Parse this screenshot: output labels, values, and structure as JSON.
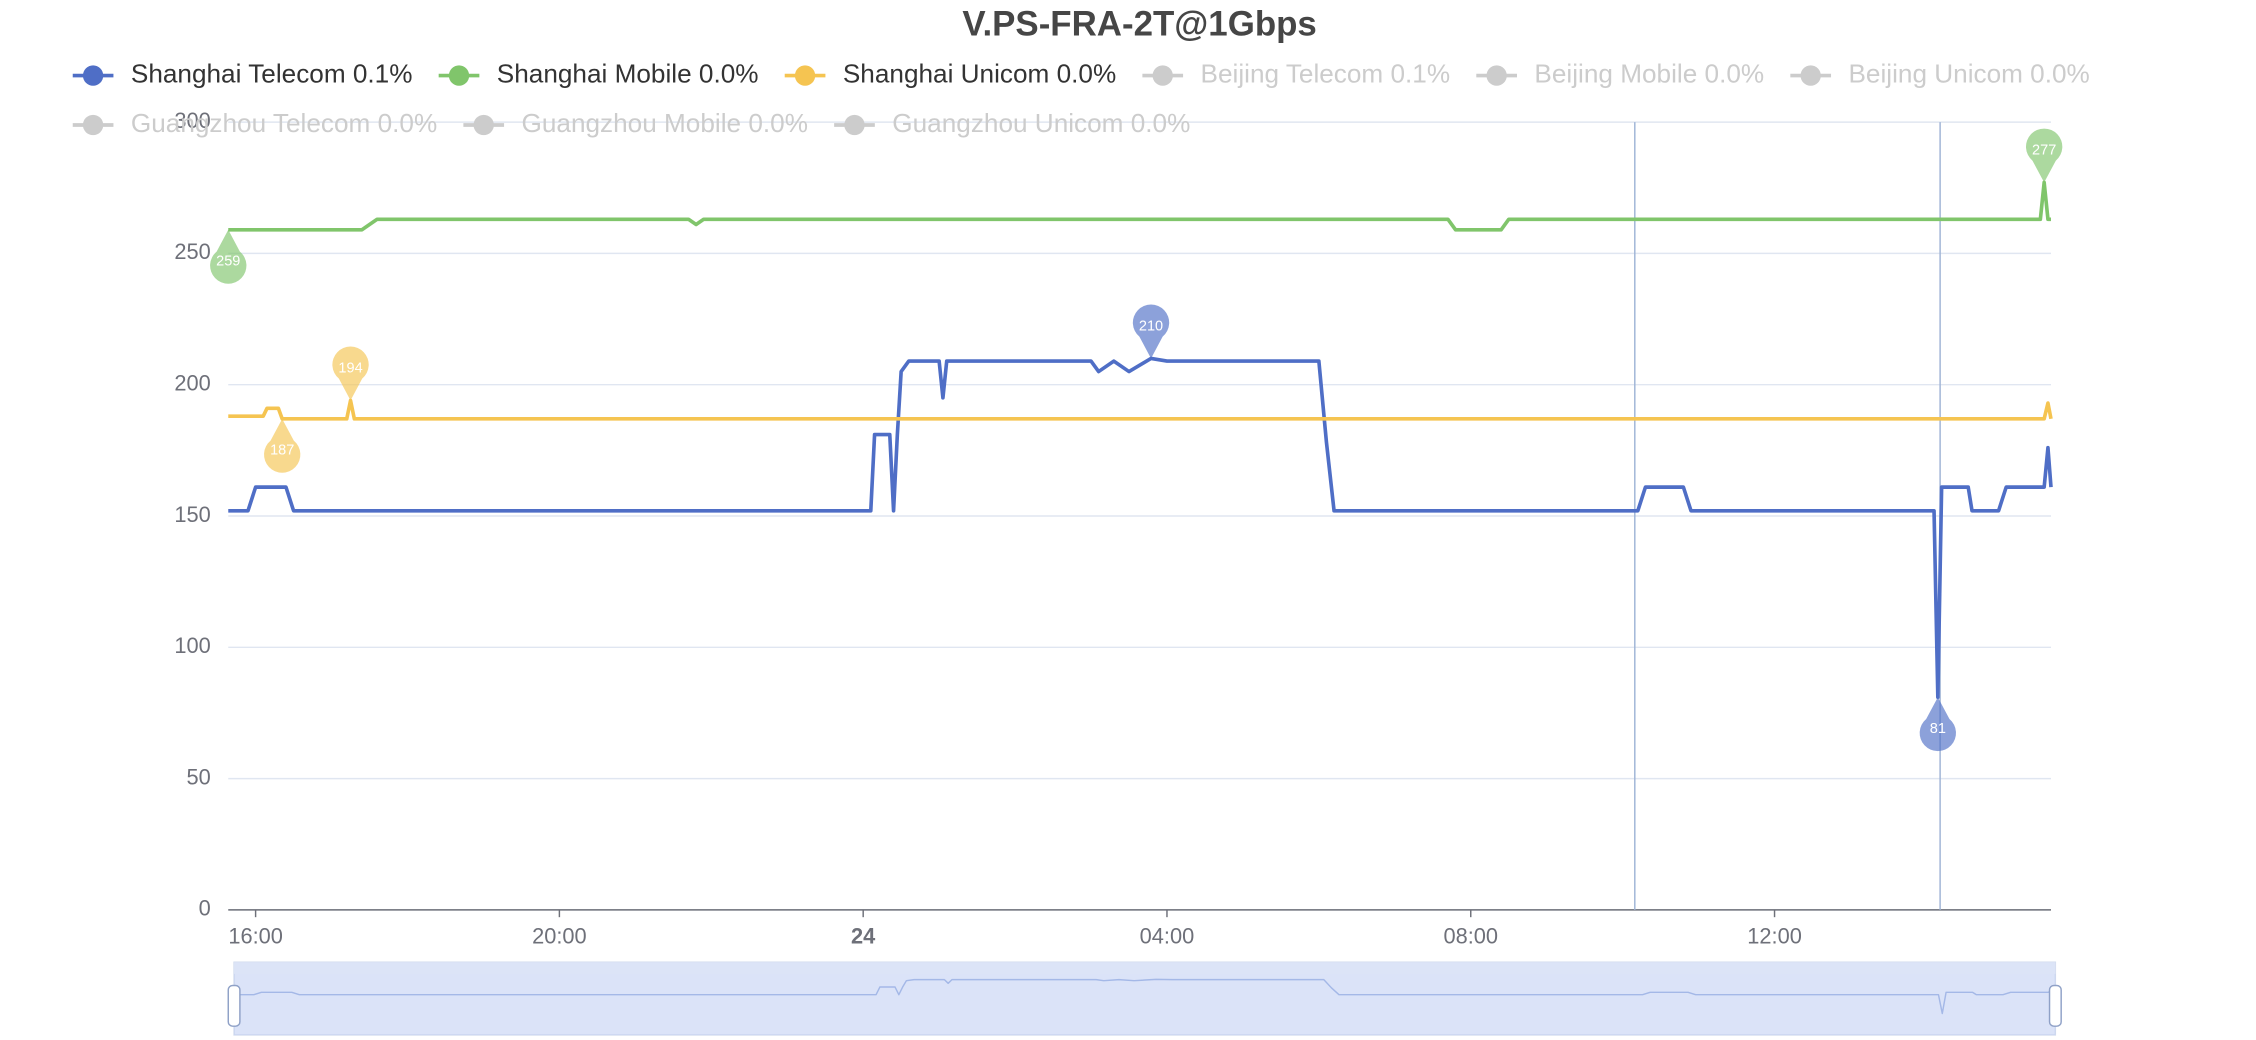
{
  "chart_data": {
    "type": "line",
    "title": "V.PS-FRA-2T@1Gbps",
    "x": [
      15.64,
      15.9,
      16.0,
      16.1,
      16.15,
      16.3,
      16.35,
      16.4,
      16.5,
      17.2,
      17.25,
      17.3,
      17.4,
      17.5,
      17.6,
      21.7,
      21.8,
      21.9,
      24.1,
      24.15,
      24.35,
      24.4,
      24.45,
      24.5,
      24.6,
      25.0,
      25.05,
      25.1,
      27.0,
      27.1,
      27.3,
      27.5,
      27.79,
      28.0,
      30.0,
      30.1,
      30.2,
      31.7,
      31.8,
      32.4,
      32.5,
      34.2,
      34.3,
      34.8,
      34.9,
      38.1,
      38.15,
      38.2,
      38.55,
      38.6,
      38.95,
      39.05,
      39.5,
      39.55,
      39.6,
      39.64
    ],
    "xlim": [
      15.64,
      39.64
    ],
    "xticks": [
      {
        "value": 16,
        "label": "16:00"
      },
      {
        "value": 20,
        "label": "20:00"
      },
      {
        "value": 24,
        "label": "24"
      },
      {
        "value": 28,
        "label": "04:00"
      },
      {
        "value": 32,
        "label": "08:00"
      },
      {
        "value": 36,
        "label": "12:00"
      }
    ],
    "ylim": [
      0,
      300
    ],
    "yticks": [
      0,
      50,
      100,
      150,
      200,
      250,
      300
    ],
    "grid": true,
    "series": [
      {
        "name": "Shanghai Telecom 0.1%",
        "color": "#4f6ec6",
        "visible": true,
        "values": [
          152,
          152,
          161,
          161,
          161,
          161,
          161,
          161,
          152,
          152,
          152,
          152,
          152,
          152,
          152,
          152,
          152,
          152,
          152,
          181,
          181,
          152,
          181,
          205,
          209,
          209,
          195,
          209,
          209,
          205,
          209,
          205,
          210,
          209,
          209,
          178,
          152,
          152,
          152,
          152,
          152,
          152,
          161,
          161,
          152,
          152,
          81,
          161,
          161,
          152,
          152,
          161,
          161,
          161,
          176,
          161
        ],
        "mark_points": [
          {
            "x": 27.79,
            "value": 210
          },
          {
            "x": 38.15,
            "value": 81
          }
        ]
      },
      {
        "name": "Shanghai Mobile 0.0%",
        "color": "#80c56b",
        "visible": true,
        "values": [
          259,
          259,
          259,
          259,
          259,
          259,
          259,
          259,
          259,
          259,
          259,
          259,
          259,
          261,
          263,
          263,
          261,
          263,
          263,
          263,
          263,
          263,
          263,
          263,
          263,
          263,
          263,
          263,
          263,
          263,
          263,
          263,
          263,
          263,
          263,
          263,
          263,
          263,
          259,
          259,
          263,
          263,
          263,
          263,
          263,
          263,
          263,
          263,
          263,
          263,
          263,
          263,
          263,
          277,
          263,
          263
        ],
        "mark_points": [
          {
            "x": 39.55,
            "value": 277
          },
          {
            "x": 15.64,
            "value": 259
          }
        ]
      },
      {
        "name": "Shanghai Unicom 0.0%",
        "color": "#f5c451",
        "visible": true,
        "values": [
          188,
          188,
          188,
          188,
          191,
          191,
          187,
          187,
          187,
          187,
          194,
          187,
          187,
          187,
          187,
          187,
          187,
          187,
          187,
          187,
          187,
          187,
          187,
          187,
          187,
          187,
          187,
          187,
          187,
          187,
          187,
          187,
          187,
          187,
          187,
          187,
          187,
          187,
          187,
          187,
          187,
          187,
          187,
          187,
          187,
          187,
          187,
          187,
          187,
          187,
          187,
          187,
          187,
          187,
          193,
          187
        ],
        "mark_points": [
          {
            "x": 17.25,
            "value": 194
          },
          {
            "x": 16.35,
            "value": 187
          }
        ]
      },
      {
        "name": "Beijing Telecom 0.1%",
        "color": "#cccccc",
        "visible": false
      },
      {
        "name": "Beijing Mobile 0.0%",
        "color": "#cccccc",
        "visible": false
      },
      {
        "name": "Beijing Unicom 0.0%",
        "color": "#cccccc",
        "visible": false
      },
      {
        "name": "Guangzhou Telecom 0.0%",
        "color": "#cccccc",
        "visible": false
      },
      {
        "name": "Guangzhou Mobile 0.0%",
        "color": "#cccccc",
        "visible": false
      },
      {
        "name": "Guangzhou Unicom 0.0%",
        "color": "#cccccc",
        "visible": false
      }
    ],
    "mark_lines_x": [
      34.16,
      38.18
    ]
  }
}
